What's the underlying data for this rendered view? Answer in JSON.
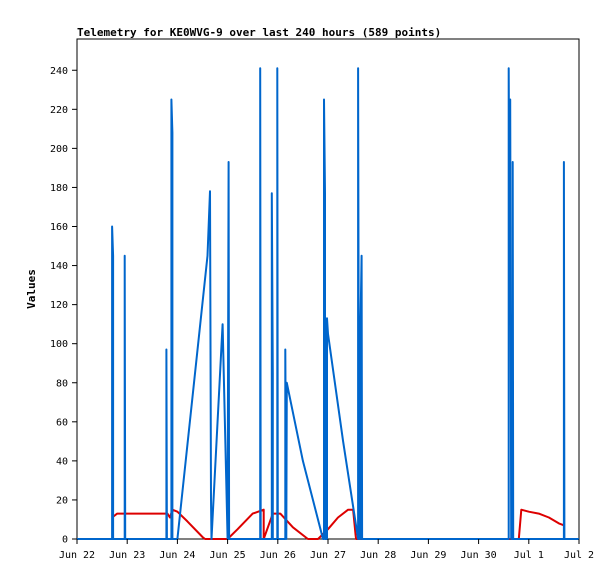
{
  "chart_data": {
    "type": "line",
    "title": "Telemetry for KE0WVG-9 over last 240 hours (589 points)",
    "xlabel": "",
    "ylabel": "Values",
    "x_tick_labels": [
      "Jun 22",
      "Jun 23",
      "Jun 24",
      "Jun 25",
      "Jun 26",
      "Jun 27",
      "Jun 28",
      "Jun 29",
      "Jun 30",
      "Jul 1",
      "Jul 2"
    ],
    "xlim": [
      0,
      10
    ],
    "ylim": [
      0,
      256
    ],
    "y_ticks": [
      0,
      20,
      40,
      60,
      80,
      100,
      120,
      140,
      160,
      180,
      200,
      220,
      240
    ],
    "grid": false,
    "series": [
      {
        "color": "#dd0000",
        "points": [
          [
            0.7,
            11
          ],
          [
            0.8,
            13
          ],
          [
            1.0,
            13
          ],
          [
            1.2,
            13
          ],
          [
            1.4,
            13
          ],
          [
            1.6,
            13
          ],
          [
            1.8,
            13
          ],
          [
            1.85,
            11
          ],
          [
            1.9,
            15
          ],
          [
            2.0,
            14
          ],
          [
            2.2,
            9
          ],
          [
            2.5,
            1
          ],
          [
            2.55,
            0
          ],
          [
            3.0,
            0
          ],
          [
            3.2,
            5
          ],
          [
            3.5,
            13
          ],
          [
            3.72,
            15
          ],
          [
            3.72,
            0
          ],
          [
            3.9,
            13
          ],
          [
            4.05,
            13
          ],
          [
            4.3,
            6
          ],
          [
            4.6,
            0
          ],
          [
            4.8,
            0
          ],
          [
            5.0,
            5
          ],
          [
            5.2,
            11
          ],
          [
            5.4,
            15
          ],
          [
            5.5,
            15
          ],
          [
            5.55,
            2
          ],
          [
            5.56,
            0
          ],
          [
            6.0,
            0
          ],
          [
            7.0,
            0
          ],
          [
            8.0,
            0
          ],
          [
            8.8,
            0
          ],
          [
            8.85,
            15
          ],
          [
            9.0,
            14
          ],
          [
            9.2,
            13
          ],
          [
            9.4,
            11
          ],
          [
            9.6,
            8
          ],
          [
            9.7,
            7
          ]
        ]
      },
      {
        "color": "#0066cc",
        "points": [
          [
            0.0,
            0
          ],
          [
            0.7,
            0
          ],
          [
            0.7,
            160
          ],
          [
            0.72,
            145
          ],
          [
            0.72,
            0
          ],
          [
            0.95,
            0
          ],
          [
            0.95,
            145
          ],
          [
            0.96,
            0
          ],
          [
            1.78,
            0
          ],
          [
            1.78,
            97
          ],
          [
            1.79,
            0
          ],
          [
            1.88,
            0
          ],
          [
            1.88,
            225
          ],
          [
            1.9,
            208
          ],
          [
            1.9,
            0
          ],
          [
            2.0,
            0
          ],
          [
            2.6,
            145
          ],
          [
            2.65,
            178
          ],
          [
            2.67,
            20
          ],
          [
            2.68,
            0
          ],
          [
            2.9,
            110
          ],
          [
            3.0,
            0
          ],
          [
            3.02,
            193
          ],
          [
            3.03,
            0
          ],
          [
            3.65,
            0
          ],
          [
            3.65,
            241
          ],
          [
            3.66,
            0
          ],
          [
            3.88,
            0
          ],
          [
            3.88,
            177
          ],
          [
            3.9,
            85
          ],
          [
            3.9,
            0
          ],
          [
            3.99,
            0
          ],
          [
            3.99,
            241
          ],
          [
            4.0,
            0
          ],
          [
            4.15,
            0
          ],
          [
            4.15,
            97
          ],
          [
            4.17,
            0
          ],
          [
            4.18,
            80
          ],
          [
            4.5,
            40
          ],
          [
            4.9,
            0
          ],
          [
            4.92,
            0
          ],
          [
            4.92,
            225
          ],
          [
            4.94,
            177
          ],
          [
            4.94,
            0
          ],
          [
            4.98,
            0
          ],
          [
            4.98,
            113
          ],
          [
            5.0,
            105
          ],
          [
            5.3,
            50
          ],
          [
            5.6,
            0
          ],
          [
            5.6,
            241
          ],
          [
            5.62,
            0
          ],
          [
            5.65,
            0
          ],
          [
            5.65,
            113
          ],
          [
            5.67,
            145
          ],
          [
            5.68,
            0
          ],
          [
            6.5,
            0
          ],
          [
            7.5,
            0
          ],
          [
            8.6,
            0
          ],
          [
            8.6,
            241
          ],
          [
            8.62,
            128
          ],
          [
            8.63,
            225
          ],
          [
            8.65,
            0
          ],
          [
            8.68,
            0
          ],
          [
            8.68,
            193
          ],
          [
            8.69,
            0
          ],
          [
            9.3,
            0
          ],
          [
            9.7,
            0
          ],
          [
            9.7,
            193
          ],
          [
            9.71,
            0
          ],
          [
            10.0,
            0
          ]
        ]
      }
    ]
  }
}
